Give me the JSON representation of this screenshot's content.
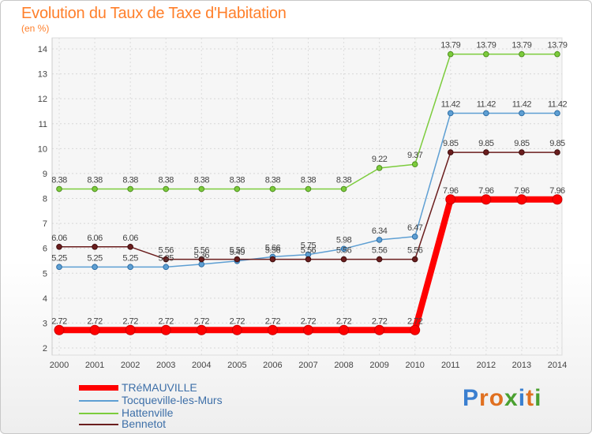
{
  "header": {
    "title": "Evolution du Taux de Taxe d'Habitation",
    "unit": "(en %)"
  },
  "chart_data": {
    "type": "line",
    "categories": [
      "2000",
      "2001",
      "2002",
      "2003",
      "2004",
      "2005",
      "2006",
      "2007",
      "2008",
      "2009",
      "2010",
      "2011",
      "2012",
      "2013",
      "2014"
    ],
    "ylim": [
      2,
      14
    ],
    "yticks": [
      2,
      3,
      4,
      5,
      6,
      7,
      8,
      9,
      10,
      11,
      12,
      13,
      14
    ],
    "grid": true,
    "series": [
      {
        "name": "Hattenville",
        "color": "#7ccc3c",
        "values": [
          8.38,
          8.38,
          8.38,
          8.38,
          8.38,
          8.38,
          8.38,
          8.38,
          8.38,
          9.22,
          9.37,
          13.79,
          13.79,
          13.79,
          13.79
        ],
        "labels": [
          "8.38",
          "8.38",
          "8.38",
          "8.38",
          "8.38",
          "8.38",
          "8.38",
          "8.38",
          "8.38",
          "9.22",
          "9.37",
          "13.79",
          "13.79",
          "13.79",
          "13.79"
        ]
      },
      {
        "name": "Tocqueville-les-Murs",
        "color": "#5e9fd3",
        "values": [
          5.25,
          5.25,
          5.25,
          5.25,
          5.36,
          5.49,
          5.66,
          5.75,
          5.98,
          6.34,
          6.47,
          11.42,
          11.42,
          11.42,
          11.42
        ],
        "labels": [
          "5.25",
          "5.25",
          "5.25",
          "5.25",
          "5.36",
          "5.49",
          "5.66",
          "5.75",
          "5.98",
          "6.34",
          "6.47",
          "11.42",
          "11.42",
          "11.42",
          "11.42"
        ]
      },
      {
        "name": "Bennetot",
        "color": "#6b1e1e",
        "values": [
          6.06,
          6.06,
          6.06,
          5.56,
          5.56,
          5.56,
          5.56,
          5.56,
          5.56,
          5.56,
          5.56,
          9.85,
          9.85,
          9.85,
          9.85
        ],
        "labels": [
          "6.06",
          "6.06",
          "6.06",
          "5.56",
          "5.56",
          "5.56",
          "5.56",
          "5.56",
          "5.56",
          "5.56",
          "5.56",
          "9.85",
          "9.85",
          "9.85",
          "9.85"
        ]
      },
      {
        "name": "TRéMAUVILLE",
        "color": "#ff0000",
        "values": [
          2.72,
          2.72,
          2.72,
          2.72,
          2.72,
          2.72,
          2.72,
          2.72,
          2.72,
          2.72,
          2.72,
          7.96,
          7.96,
          7.96,
          7.96
        ],
        "labels": [
          "2.72",
          "2.72",
          "2.72",
          "2.72",
          "2.72",
          "2.72",
          "2.72",
          "2.72",
          "2.72",
          "2.72",
          "2.72",
          "7.96",
          "7.96",
          "7.96",
          "7.96"
        ]
      }
    ]
  },
  "legend": {
    "items": [
      {
        "label": "TRéMAUVILLE",
        "color": "#ff0000"
      },
      {
        "label": "Tocqueville-les-Murs",
        "color": "#5e9fd3"
      },
      {
        "label": "Hattenville",
        "color": "#7ccc3c"
      },
      {
        "label": "Bennetot",
        "color": "#6b1e1e"
      }
    ]
  },
  "logo": {
    "letters": [
      "P",
      "r",
      "o",
      "x",
      "i",
      "t",
      "i"
    ],
    "colors": [
      "#3a7fd0",
      "#e07020",
      "#e07020",
      "#4aa030",
      "#3a7fd0",
      "#e07020",
      "#4aa030"
    ]
  }
}
